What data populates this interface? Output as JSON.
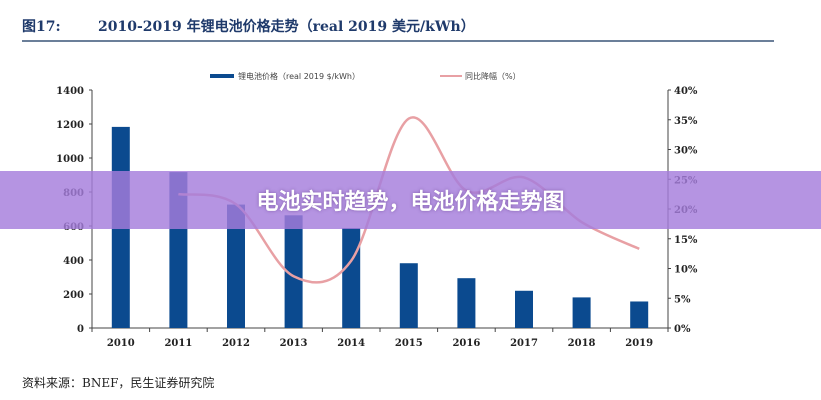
{
  "figure_label": "图17:",
  "title": "2010-2019 年锂电池价格走势（real 2019 美元/kWh）",
  "banner": "电池实时趋势，电池价格走势图",
  "source": "资料来源：BNEF，民生证券研究院",
  "chart_data": {
    "type": "bar+line",
    "categories": [
      "2010",
      "2011",
      "2012",
      "2013",
      "2014",
      "2015",
      "2016",
      "2017",
      "2018",
      "2019"
    ],
    "series": [
      {
        "name": "锂电池价格（real 2019 $/kWh）",
        "type": "bar",
        "axis": "left",
        "color": "#0b4a8f",
        "values": [
          1183,
          917,
          726,
          663,
          588,
          381,
          293,
          219,
          180,
          156
        ]
      },
      {
        "name": "同比降幅（%）",
        "type": "line",
        "axis": "right",
        "color": "#e8a0a4",
        "values": [
          null,
          22.5,
          20.8,
          8.7,
          11.3,
          35.2,
          23.1,
          25.3,
          17.8,
          13.3
        ]
      }
    ],
    "y_left": {
      "range": [
        0,
        1400
      ],
      "ticks": [
        "0",
        "200",
        "400",
        "600",
        "800",
        "1000",
        "1200",
        "1400"
      ]
    },
    "y_right": {
      "range": [
        0,
        40
      ],
      "ticks": [
        "0%",
        "5%",
        "10%",
        "15%",
        "20%",
        "25%",
        "30%",
        "35%",
        "40%"
      ]
    },
    "legend_position": "top",
    "grid": false
  }
}
